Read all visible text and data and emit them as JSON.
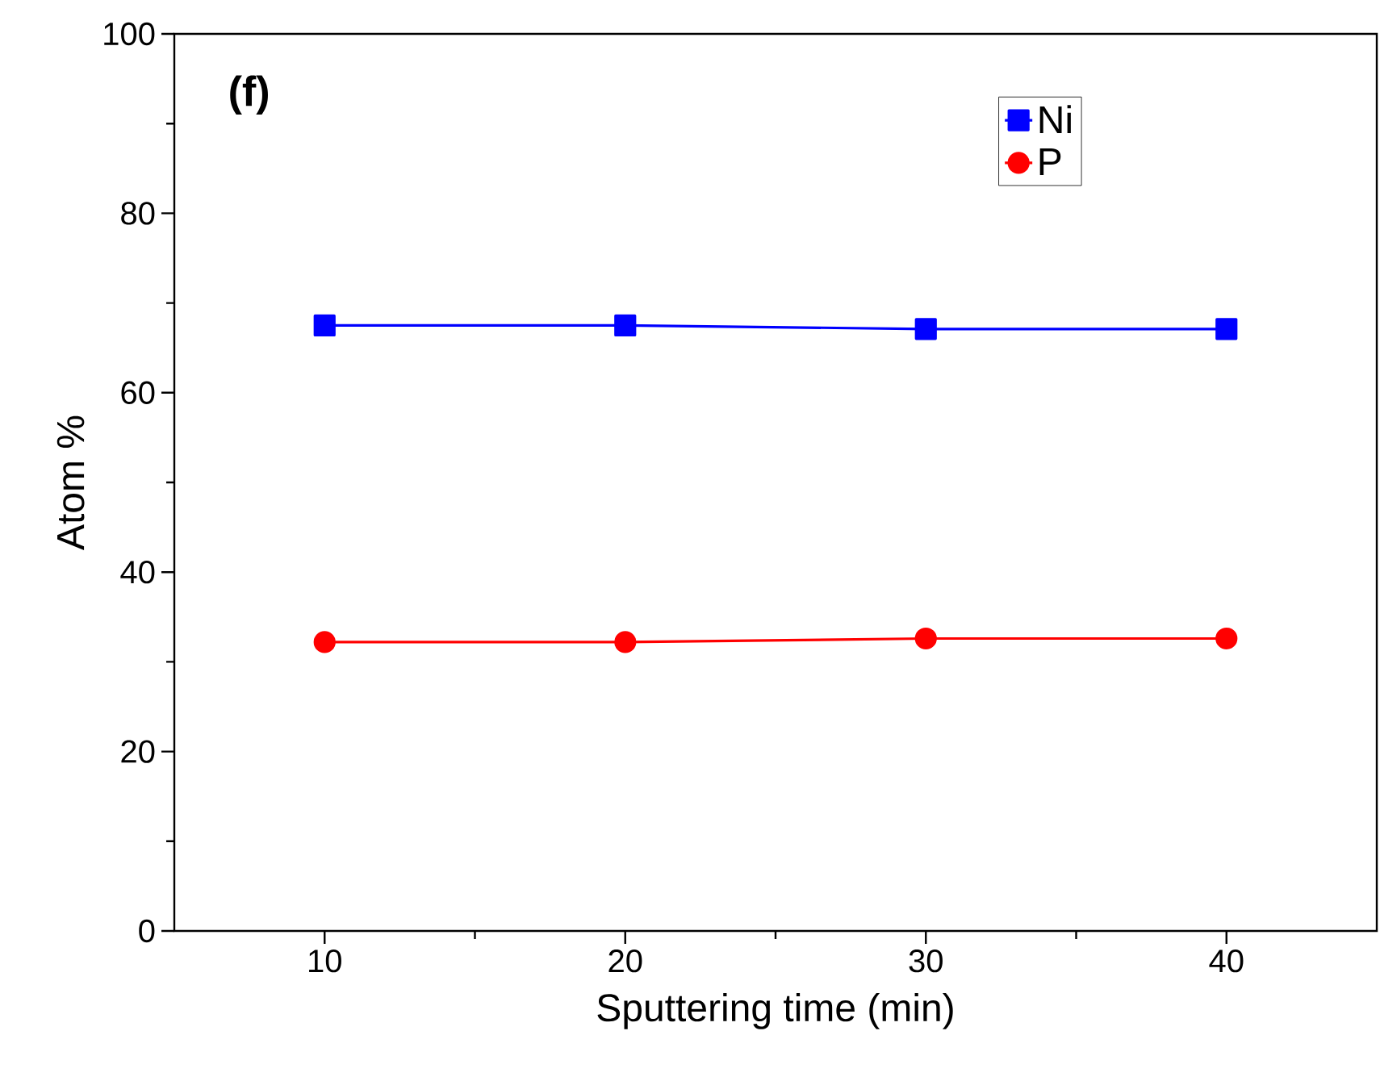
{
  "chart_data": {
    "type": "line",
    "xlabel": "Sputtering time (min)",
    "ylabel": "Atom %",
    "annotations": [
      "(f)"
    ],
    "x": [
      10,
      20,
      30,
      40
    ],
    "series": [
      {
        "name": "Ni",
        "color": "#0000ff",
        "marker": "square",
        "values": [
          67.5,
          67.5,
          67.1,
          67.1
        ]
      },
      {
        "name": "P",
        "color": "#ff0000",
        "marker": "circle",
        "values": [
          32.2,
          32.2,
          32.6,
          32.6
        ]
      }
    ],
    "xlim": [
      5,
      45
    ],
    "ylim": [
      0,
      100
    ],
    "xticks": [
      10,
      20,
      30,
      40
    ],
    "yticks": [
      0,
      20,
      40,
      60,
      80,
      100
    ],
    "legend": "top right",
    "grid": false,
    "line_style": "solid"
  }
}
